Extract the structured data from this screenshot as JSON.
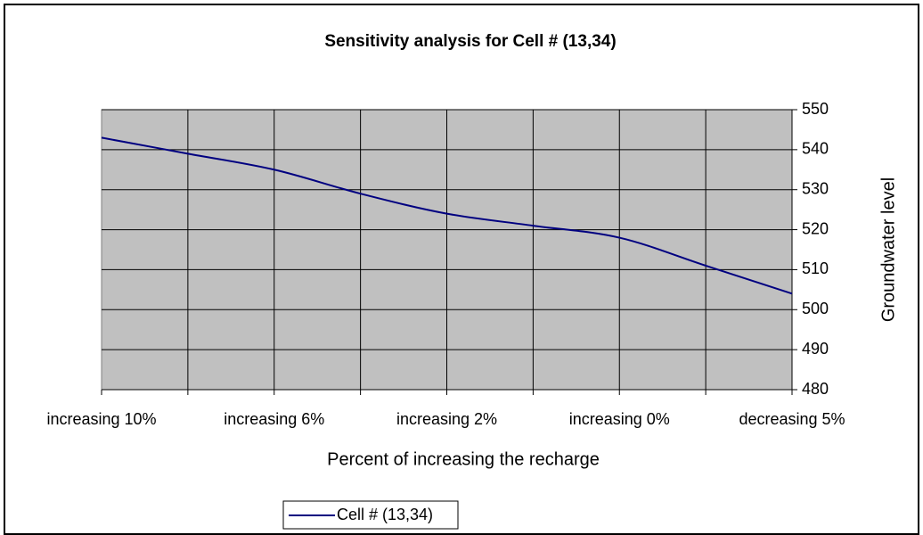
{
  "chart_data": {
    "type": "line",
    "title": "Sensitivity analysis for Cell # (13,34)",
    "x_label": "Percent of increasing the recharge",
    "y_label": "Groundwater level",
    "categories": [
      "increasing 10%",
      null,
      "increasing 6%",
      null,
      "increasing 2%",
      null,
      "increasing 0%",
      null,
      "decreasing 5%"
    ],
    "series": [
      {
        "name": "Cell # (13,34)",
        "color": "#000080",
        "values": [
          543,
          539,
          535,
          529,
          524,
          521,
          518,
          511,
          504
        ]
      }
    ],
    "ylim": [
      480,
      550
    ],
    "yticks": [
      480,
      490,
      500,
      510,
      520,
      530,
      540,
      550
    ],
    "y_axis_side": "right",
    "grid": true,
    "smooth": true,
    "legend": "bottom"
  }
}
